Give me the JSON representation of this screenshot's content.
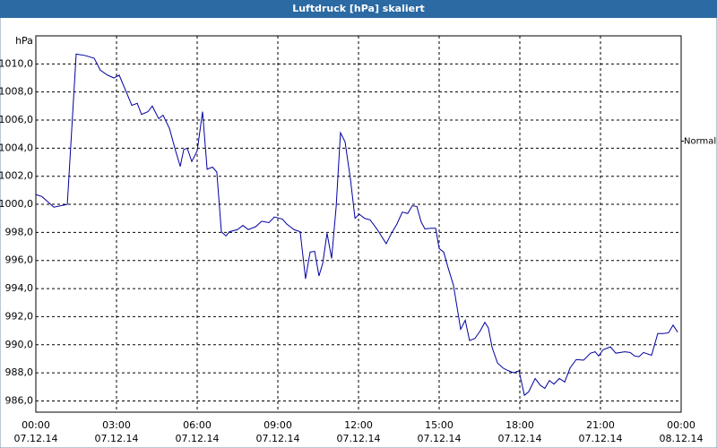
{
  "chart_data": {
    "type": "line",
    "title": "Luftdruck [hPa] skaliert",
    "y_label": "hPa",
    "xlim": [
      0,
      24
    ],
    "ylim": [
      985.2,
      1012.0
    ],
    "grid": true,
    "xticks": [
      {
        "value": 0,
        "label": "00:00"
      },
      {
        "value": 3,
        "label": "03:00"
      },
      {
        "value": 6,
        "label": "06:00"
      },
      {
        "value": 9,
        "label": "09:00"
      },
      {
        "value": 12,
        "label": "12:00"
      },
      {
        "value": 15,
        "label": "15:00"
      },
      {
        "value": 18,
        "label": "18:00"
      },
      {
        "value": 21,
        "label": "21:00"
      },
      {
        "value": 24,
        "label": "00:00"
      }
    ],
    "xtick_dates": [
      "07.12.14",
      "07.12.14",
      "07.12.14",
      "07.12.14",
      "07.12.14",
      "07.12.14",
      "07.12.14",
      "07.12.14",
      "08.12.14"
    ],
    "yticks": [
      {
        "value": 986,
        "label": "986,0"
      },
      {
        "value": 988,
        "label": "988,0"
      },
      {
        "value": 990,
        "label": "990,0"
      },
      {
        "value": 992,
        "label": "992,0"
      },
      {
        "value": 994,
        "label": "994,0"
      },
      {
        "value": 996,
        "label": "996,0"
      },
      {
        "value": 998,
        "label": "998,0"
      },
      {
        "value": 1000,
        "label": "1000,0"
      },
      {
        "value": 1002,
        "label": "1002,0"
      },
      {
        "value": 1004,
        "label": "1004,0"
      },
      {
        "value": 1006,
        "label": "1006,0"
      },
      {
        "value": 1008,
        "label": "1008,0"
      },
      {
        "value": 1010,
        "label": "1010,0"
      }
    ],
    "annotation": {
      "text": "Normal",
      "value": 1004.5
    },
    "series": [
      {
        "color": "#0000a0",
        "x": [
          0,
          0.23,
          0.67,
          1.17,
          1.5,
          1.83,
          2.17,
          2.4,
          2.67,
          2.9,
          3.1,
          3.33,
          3.57,
          3.77,
          3.93,
          4.17,
          4.33,
          4.57,
          4.73,
          4.97,
          5.17,
          5.37,
          5.5,
          5.63,
          5.8,
          6.0,
          6.2,
          6.37,
          6.57,
          6.73,
          6.9,
          7.07,
          7.2,
          7.5,
          7.7,
          7.9,
          8.17,
          8.4,
          8.67,
          8.87,
          9.17,
          9.33,
          9.6,
          9.83,
          10.03,
          10.2,
          10.37,
          10.53,
          10.67,
          10.83,
          11.0,
          11.17,
          11.33,
          11.5,
          11.7,
          11.87,
          12.03,
          12.23,
          12.43,
          12.7,
          13.03,
          13.23,
          13.43,
          13.63,
          13.83,
          14.0,
          14.17,
          14.33,
          14.47,
          14.7,
          14.87,
          15.0,
          15.17,
          15.33,
          15.53,
          15.8,
          15.97,
          16.13,
          16.33,
          16.53,
          16.7,
          16.83,
          16.97,
          17.17,
          17.37,
          17.57,
          17.77,
          17.97,
          18.17,
          18.33,
          18.57,
          18.77,
          18.93,
          19.1,
          19.27,
          19.47,
          19.67,
          19.87,
          20.1,
          20.37,
          20.63,
          20.8,
          20.93,
          21.1,
          21.37,
          21.57,
          21.9,
          22.1,
          22.27,
          22.43,
          22.6,
          22.9,
          23.13,
          23.33,
          23.53,
          23.7,
          23.87
        ],
        "values": [
          1000.7,
          1000.55,
          999.8,
          1000.0,
          1010.7,
          1010.6,
          1010.4,
          1009.55,
          1009.2,
          1009.0,
          1009.2,
          1008.15,
          1007.05,
          1007.2,
          1006.4,
          1006.6,
          1007.0,
          1006.1,
          1006.35,
          1005.4,
          1004.0,
          1002.7,
          1003.9,
          1004.0,
          1003.05,
          1003.8,
          1006.6,
          1002.5,
          1002.65,
          1002.3,
          998.05,
          997.75,
          998.05,
          998.2,
          998.5,
          998.2,
          998.4,
          998.8,
          998.7,
          999.1,
          998.95,
          998.6,
          998.2,
          998.05,
          994.7,
          996.6,
          996.65,
          994.9,
          995.8,
          997.95,
          996.15,
          999.85,
          1005.1,
          1004.45,
          1001.8,
          999.0,
          999.3,
          999.0,
          998.9,
          998.2,
          997.2,
          997.95,
          998.6,
          999.45,
          999.35,
          999.9,
          999.85,
          998.75,
          998.25,
          998.3,
          998.3,
          996.85,
          996.6,
          995.5,
          994.25,
          991.1,
          991.75,
          990.3,
          990.45,
          991.0,
          991.6,
          991.2,
          989.8,
          988.7,
          988.35,
          988.15,
          988.0,
          988.15,
          986.4,
          986.65,
          987.6,
          987.1,
          986.9,
          987.45,
          987.2,
          987.6,
          987.35,
          988.35,
          988.95,
          988.9,
          989.4,
          989.5,
          989.2,
          989.65,
          989.85,
          989.4,
          989.5,
          989.45,
          989.2,
          989.15,
          989.45,
          989.25,
          990.8,
          990.8,
          990.85,
          991.4,
          990.9
        ]
      }
    ]
  }
}
